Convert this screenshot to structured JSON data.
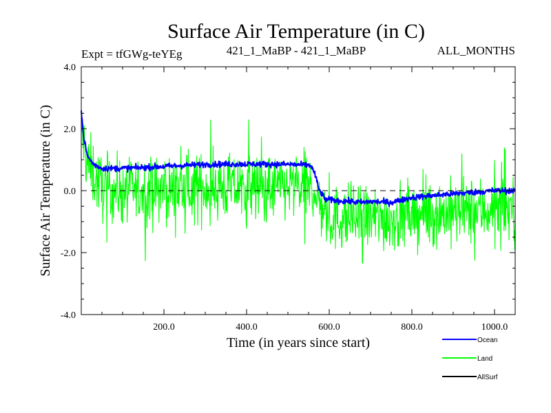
{
  "chart_data": {
    "type": "line",
    "title": "Surface Air Temperature (in C)",
    "subtitle_left": "Expt = tfGWg-teYEg",
    "subtitle_center": "421_1_MaBP - 421_1_MaBP",
    "subtitle_right": "ALL_MONTHS",
    "xlabel": "Time (in years since start)",
    "ylabel": "Surface Air Temperature (in C)",
    "xlim": [
      0,
      1050
    ],
    "ylim": [
      -4.0,
      4.0
    ],
    "x_ticks": [
      200,
      400,
      600,
      800,
      1000
    ],
    "x_tick_labels": [
      "200.0",
      "400.0",
      "600.0",
      "800.0",
      "1000.0"
    ],
    "y_ticks": [
      -4,
      -2,
      0,
      2,
      4
    ],
    "y_tick_labels": [
      "-4.0",
      "-2.0",
      "0.0",
      "2.0",
      "4.0"
    ],
    "reference_line": 0.0,
    "legend_position": "bottom-right, below plot",
    "series": [
      {
        "name": "Land",
        "color": "#00ff00",
        "noise_amplitude": 0.75,
        "x": [
          0,
          5,
          15,
          30,
          50,
          100,
          200,
          300,
          400,
          500,
          555,
          570,
          580,
          600,
          650,
          700,
          750,
          800,
          900,
          1000,
          1050
        ],
        "values": [
          2.0,
          1.6,
          0.9,
          0.5,
          0.1,
          0.0,
          0.0,
          0.1,
          0.1,
          0.1,
          0.1,
          -0.2,
          -0.5,
          -0.9,
          -0.9,
          -0.9,
          -0.9,
          -0.8,
          -0.7,
          -0.6,
          -0.6
        ]
      },
      {
        "name": "Ocean",
        "color": "#0000ff",
        "noise_amplitude": 0.07,
        "x": [
          0,
          5,
          15,
          30,
          50,
          100,
          200,
          300,
          400,
          500,
          555,
          565,
          575,
          590,
          620,
          680,
          700,
          750,
          800,
          900,
          1000,
          1050
        ],
        "values": [
          2.6,
          1.8,
          1.1,
          0.85,
          0.72,
          0.72,
          0.78,
          0.85,
          0.86,
          0.85,
          0.82,
          0.55,
          0.05,
          -0.28,
          -0.32,
          -0.38,
          -0.35,
          -0.38,
          -0.22,
          -0.1,
          0.0,
          0.0
        ]
      },
      {
        "name": "AllSurf",
        "color": "#000000",
        "x": [],
        "values": []
      }
    ]
  }
}
